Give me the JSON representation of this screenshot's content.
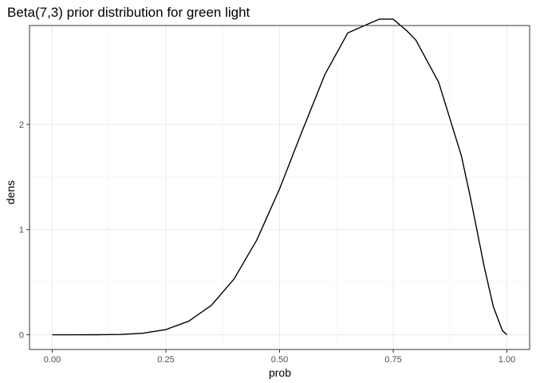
{
  "chart_data": {
    "type": "line",
    "title": "Beta(7,3) prior distribution for green light",
    "xlabel": "prob",
    "ylabel": "dens",
    "xlim": [
      -0.05,
      1.05
    ],
    "ylim": [
      -0.14,
      2.94
    ],
    "x_ticks": [
      0,
      0.25,
      0.5,
      0.75,
      1
    ],
    "x_tick_labels": [
      "0.00",
      "0.25",
      "0.50",
      "0.75",
      "1.00"
    ],
    "y_ticks": [
      0,
      1,
      2
    ],
    "y_tick_labels": [
      "0",
      "1",
      "2"
    ],
    "grid": true,
    "series": [
      {
        "x": [
          0,
          0.05,
          0.1,
          0.15,
          0.2,
          0.25,
          0.3,
          0.35,
          0.4,
          0.45,
          0.5,
          0.55,
          0.6,
          0.65,
          0.7,
          0.72,
          0.75,
          0.78,
          0.8,
          0.85,
          0.9,
          0.92,
          0.95,
          0.97,
          0.99,
          1
        ],
        "y": [
          0,
          0,
          0.0004,
          0.0031,
          0.0147,
          0.0494,
          0.1286,
          0.2794,
          0.5308,
          0.9017,
          1.3867,
          1.9403,
          2.477,
          2.8695,
          2.9648,
          3.0014,
          3.0,
          2.89,
          2.8,
          2.4,
          1.7,
          1.3,
          0.65,
          0.27,
          0.04,
          0
        ],
        "color": "#000000"
      }
    ]
  }
}
